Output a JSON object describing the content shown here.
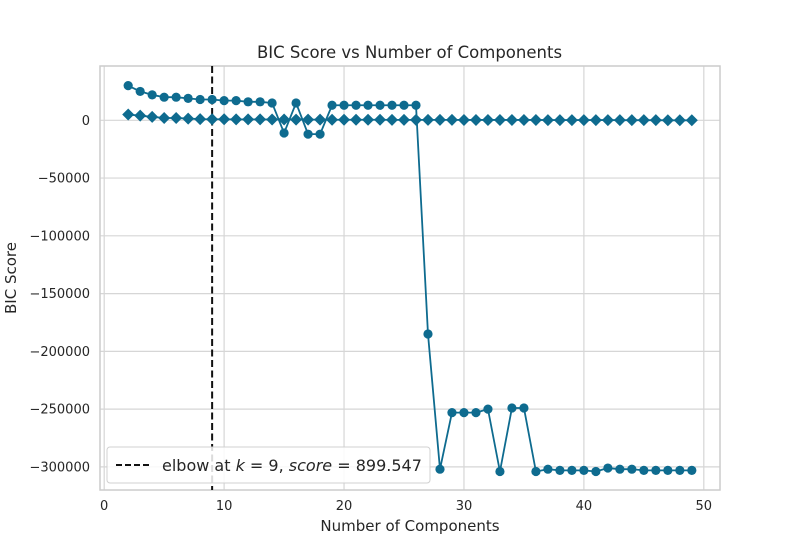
{
  "chart_data": {
    "type": "line",
    "title": "BIC Score vs Number of Components",
    "xlabel": "Number of Components",
    "ylabel": "BIC Score",
    "xlim": [
      -0.35,
      51.35
    ],
    "ylim": [
      -320000,
      47000
    ],
    "xticks": [
      0,
      10,
      20,
      30,
      40,
      50
    ],
    "yticks": [
      0,
      -50000,
      -100000,
      -150000,
      -200000,
      -250000,
      -300000
    ],
    "ytick_labels": [
      "0",
      "−50000",
      "−100000",
      "−150000",
      "−200000",
      "−250000",
      "−300000"
    ],
    "grid": true,
    "colors": {
      "series": "#0e6b8f",
      "elbow": "#111111",
      "grid": "#d6d6d6",
      "frame": "#cccccc"
    },
    "x": [
      2,
      3,
      4,
      5,
      6,
      7,
      8,
      9,
      10,
      11,
      12,
      13,
      14,
      15,
      16,
      17,
      18,
      19,
      20,
      21,
      22,
      23,
      24,
      25,
      26,
      27,
      28,
      29,
      30,
      31,
      32,
      33,
      34,
      35,
      36,
      37,
      38,
      39,
      40,
      41,
      42,
      43,
      44,
      45,
      46,
      47,
      48,
      49
    ],
    "series": [
      {
        "marker": "circle",
        "values": [
          30000,
          25000,
          22000,
          20000,
          20000,
          19000,
          18000,
          18000,
          17000,
          17000,
          16000,
          16000,
          15000,
          -11000,
          15000,
          -12000,
          -12000,
          13000,
          13000,
          13000,
          13000,
          13000,
          13000,
          13000,
          13000,
          -185000,
          -302000,
          -253000,
          -253000,
          -253000,
          -250000,
          -304000,
          -249000,
          -249000,
          -304000,
          -302000,
          -303000,
          -303000,
          -303000,
          -304000,
          -301000,
          -302000,
          -302000,
          -303000,
          -303000,
          -303000,
          -303000,
          -303000
        ]
      },
      {
        "marker": "diamond",
        "values": [
          5000,
          4000,
          3000,
          2000,
          2000,
          1500,
          1000,
          900,
          900,
          800,
          800,
          800,
          700,
          700,
          600,
          600,
          600,
          500,
          500,
          500,
          500,
          500,
          400,
          400,
          400,
          400,
          400,
          400,
          300,
          300,
          300,
          300,
          300,
          300,
          300,
          200,
          200,
          200,
          200,
          200,
          200,
          100,
          100,
          100,
          100,
          0,
          0,
          0
        ]
      }
    ],
    "elbow": {
      "x": 9
    },
    "legend": {
      "position": "lower-left",
      "label_prefix": "elbow at ",
      "k_symbol": "k",
      "k_value": " = 9, ",
      "score_symbol": "score",
      "score_value": " = 899.547"
    }
  }
}
